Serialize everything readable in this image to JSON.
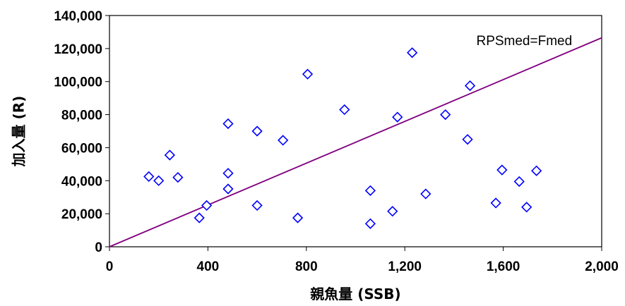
{
  "chart_data": {
    "type": "scatter",
    "title": "",
    "xlabel": "親魚量 (SSB)",
    "ylabel": "加入量 (R)",
    "xlim": [
      0,
      2000
    ],
    "ylim": [
      0,
      140000
    ],
    "x_ticks": [
      0,
      400,
      800,
      1200,
      1600,
      2000
    ],
    "x_tick_labels": [
      "0",
      "400",
      "800",
      "1,200",
      "1,600",
      "2,000"
    ],
    "y_ticks": [
      0,
      20000,
      40000,
      60000,
      80000,
      100000,
      120000,
      140000
    ],
    "y_tick_labels": [
      "0",
      "20,000",
      "40,000",
      "60,000",
      "80,000",
      "100,000",
      "120,000",
      "140,000"
    ],
    "grid": false,
    "series": [
      {
        "marker": "diamond-open",
        "color": "#0000ff",
        "points": [
          [
            160,
            42500
          ],
          [
            200,
            40000
          ],
          [
            245,
            55500
          ],
          [
            278,
            42000
          ],
          [
            365,
            17500
          ],
          [
            395,
            25000
          ],
          [
            482,
            74500
          ],
          [
            482,
            44500
          ],
          [
            482,
            35000
          ],
          [
            600,
            70000
          ],
          [
            600,
            25000
          ],
          [
            705,
            64500
          ],
          [
            765,
            17500
          ],
          [
            805,
            104500
          ],
          [
            955,
            83000
          ],
          [
            1060,
            34000
          ],
          [
            1060,
            14000
          ],
          [
            1150,
            21500
          ],
          [
            1170,
            78500
          ],
          [
            1230,
            117500
          ],
          [
            1285,
            32000
          ],
          [
            1365,
            80000
          ],
          [
            1455,
            65000
          ],
          [
            1465,
            97500
          ],
          [
            1570,
            26500
          ],
          [
            1595,
            46500
          ],
          [
            1665,
            39500
          ],
          [
            1695,
            24000
          ],
          [
            1735,
            46000
          ]
        ]
      }
    ],
    "reference_line": {
      "name": "RPSmed=Fmed",
      "color": "#800080",
      "x": [
        0,
        2000
      ],
      "y": [
        0,
        126500
      ]
    },
    "annotations": [
      {
        "text": "RPSmed=Fmed",
        "x": 1880,
        "y": 122000
      }
    ]
  }
}
